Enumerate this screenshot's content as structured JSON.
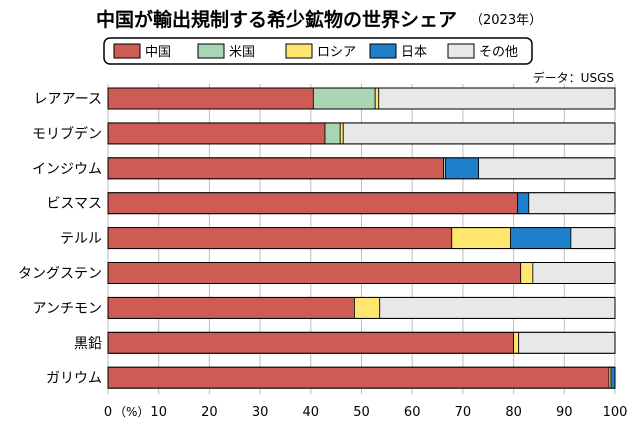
{
  "chart_data": {
    "type": "bar",
    "orientation": "horizontal",
    "stacked": true,
    "title": "中国が輸出規制する希少鉱物の世界シェア",
    "subtitle": "（2023年）",
    "source": "データ：USGS",
    "x_unit": "（%）",
    "xlim": [
      0,
      100
    ],
    "x_ticks": [
      "0",
      "10",
      "20",
      "30",
      "40",
      "50",
      "60",
      "70",
      "80",
      "90",
      "100"
    ],
    "grid": true,
    "legend_position": "top",
    "categories": [
      "レアアース",
      "モリブデン",
      "インジウム",
      "ビスマス",
      "テルル",
      "タングステン",
      "アンチモン",
      "黒鉛",
      "ガリウム"
    ],
    "series": [
      {
        "name": "中国",
        "color": "#cd5c54",
        "values": [
          40.5,
          42.8,
          66.2,
          80.8,
          67.8,
          81.4,
          48.6,
          80.0,
          98.8
        ]
      },
      {
        "name": "米国",
        "color": "#a9d5b5",
        "values": [
          12.2,
          3.0,
          0.4,
          0,
          0,
          0,
          0,
          0,
          0
        ]
      },
      {
        "name": "ロシア",
        "color": "#ffe66e",
        "values": [
          0.7,
          0.6,
          0,
          0,
          11.6,
          2.4,
          5.0,
          1.0,
          0.4
        ]
      },
      {
        "name": "日本",
        "color": "#1e7fcb",
        "values": [
          0,
          0,
          6.5,
          2.2,
          11.9,
          0,
          0,
          0,
          0.8
        ]
      },
      {
        "name": "その他",
        "color": "#e8e8e8",
        "values": [
          46.6,
          53.6,
          26.9,
          17.0,
          8.7,
          16.2,
          46.4,
          19.0,
          0
        ]
      }
    ]
  }
}
